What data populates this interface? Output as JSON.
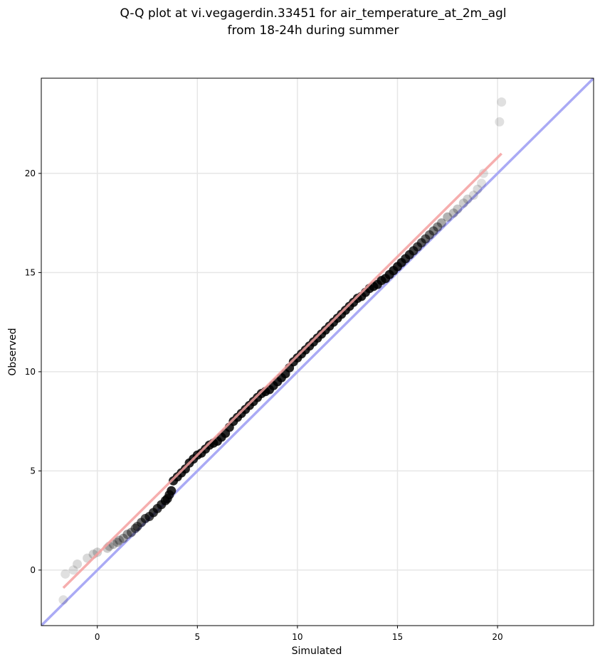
{
  "chart_data": {
    "type": "scatter",
    "title": [
      "Q-Q plot at vi.vegagerdin.33451 for air_temperature_at_2m_agl",
      "from 18-24h during summer"
    ],
    "xlabel": "Simulated",
    "ylabel": "Observed",
    "xlim": [
      -2.8,
      24.8
    ],
    "ylim": [
      -2.8,
      24.8
    ],
    "xticks": [
      0,
      5,
      10,
      15,
      20
    ],
    "yticks": [
      0,
      5,
      10,
      15,
      20
    ],
    "grid": true,
    "reference_line": {
      "x": [
        -2.8,
        24.8
      ],
      "y": [
        -2.8,
        24.8
      ],
      "color": "#aaaaf5"
    },
    "fit_line": {
      "x": [
        -1.7,
        20.2
      ],
      "y": [
        -0.9,
        21.0
      ],
      "color": "#f5a0a0"
    },
    "point_color": "#000000",
    "scatter_points": {
      "x": [
        -1.7,
        -1.6,
        -1.2,
        -1.0,
        -0.5,
        -0.2,
        0.0,
        0.5,
        0.6,
        0.8,
        1.0,
        1.1,
        1.3,
        1.5,
        1.7,
        1.9,
        2.0,
        2.2,
        2.4,
        2.6,
        2.8,
        3.0,
        3.2,
        3.4,
        3.5,
        3.6,
        3.7,
        3.8,
        4.0,
        4.2,
        4.4,
        4.6,
        4.8,
        5.0,
        5.2,
        5.4,
        5.6,
        5.8,
        6.0,
        6.2,
        6.4,
        6.6,
        6.8,
        7.0,
        7.2,
        7.4,
        7.6,
        7.8,
        8.0,
        8.2,
        8.4,
        8.6,
        8.8,
        9.0,
        9.2,
        9.4,
        9.6,
        9.8,
        10.0,
        10.2,
        10.4,
        10.6,
        10.8,
        11.0,
        11.2,
        11.4,
        11.6,
        11.8,
        12.0,
        12.2,
        12.4,
        12.6,
        12.8,
        13.0,
        13.2,
        13.4,
        13.6,
        13.8,
        14.0,
        14.2,
        14.4,
        14.6,
        14.8,
        15.0,
        15.2,
        15.4,
        15.6,
        15.8,
        16.0,
        16.2,
        16.4,
        16.6,
        16.8,
        17.0,
        17.2,
        17.5,
        17.8,
        18.0,
        18.3,
        18.5,
        18.8,
        19.0,
        19.2,
        19.3,
        20.1,
        20.2
      ],
      "y": [
        -1.5,
        -0.2,
        0.0,
        0.3,
        0.6,
        0.8,
        0.9,
        1.1,
        1.2,
        1.3,
        1.4,
        1.5,
        1.6,
        1.8,
        1.9,
        2.1,
        2.2,
        2.4,
        2.6,
        2.7,
        2.9,
        3.1,
        3.3,
        3.5,
        3.6,
        3.8,
        4.0,
        4.5,
        4.7,
        4.9,
        5.1,
        5.4,
        5.6,
        5.8,
        5.9,
        6.1,
        6.3,
        6.4,
        6.5,
        6.7,
        6.9,
        7.2,
        7.5,
        7.7,
        7.9,
        8.1,
        8.3,
        8.5,
        8.7,
        8.9,
        9.0,
        9.1,
        9.3,
        9.5,
        9.7,
        9.9,
        10.2,
        10.5,
        10.7,
        10.9,
        11.1,
        11.3,
        11.5,
        11.7,
        11.9,
        12.1,
        12.3,
        12.5,
        12.7,
        12.9,
        13.1,
        13.3,
        13.5,
        13.7,
        13.8,
        14.0,
        14.2,
        14.3,
        14.4,
        14.6,
        14.7,
        14.9,
        15.1,
        15.3,
        15.5,
        15.7,
        15.9,
        16.1,
        16.3,
        16.5,
        16.7,
        16.9,
        17.1,
        17.3,
        17.5,
        17.8,
        18.0,
        18.2,
        18.5,
        18.7,
        18.9,
        19.2,
        19.5,
        20.0,
        22.6,
        23.6
      ],
      "opacity": [
        0.12,
        0.12,
        0.12,
        0.15,
        0.15,
        0.18,
        0.18,
        0.2,
        0.22,
        0.25,
        0.3,
        0.3,
        0.35,
        0.4,
        0.45,
        0.5,
        0.55,
        0.6,
        0.65,
        0.7,
        0.75,
        0.75,
        0.78,
        0.8,
        0.8,
        0.8,
        0.85,
        0.85,
        0.85,
        0.85,
        0.85,
        0.85,
        0.85,
        0.85,
        0.85,
        0.85,
        0.85,
        0.85,
        0.85,
        0.85,
        0.85,
        0.85,
        0.85,
        0.85,
        0.85,
        0.85,
        0.85,
        0.85,
        0.85,
        0.85,
        0.85,
        0.85,
        0.85,
        0.85,
        0.85,
        0.85,
        0.85,
        0.85,
        0.85,
        0.85,
        0.85,
        0.85,
        0.85,
        0.85,
        0.85,
        0.85,
        0.85,
        0.85,
        0.85,
        0.85,
        0.85,
        0.85,
        0.85,
        0.85,
        0.85,
        0.85,
        0.85,
        0.85,
        0.85,
        0.85,
        0.85,
        0.85,
        0.85,
        0.85,
        0.85,
        0.8,
        0.8,
        0.75,
        0.7,
        0.65,
        0.6,
        0.55,
        0.5,
        0.45,
        0.35,
        0.3,
        0.25,
        0.22,
        0.2,
        0.18,
        0.15,
        0.15,
        0.12,
        0.12,
        0.12,
        0.12
      ]
    }
  }
}
